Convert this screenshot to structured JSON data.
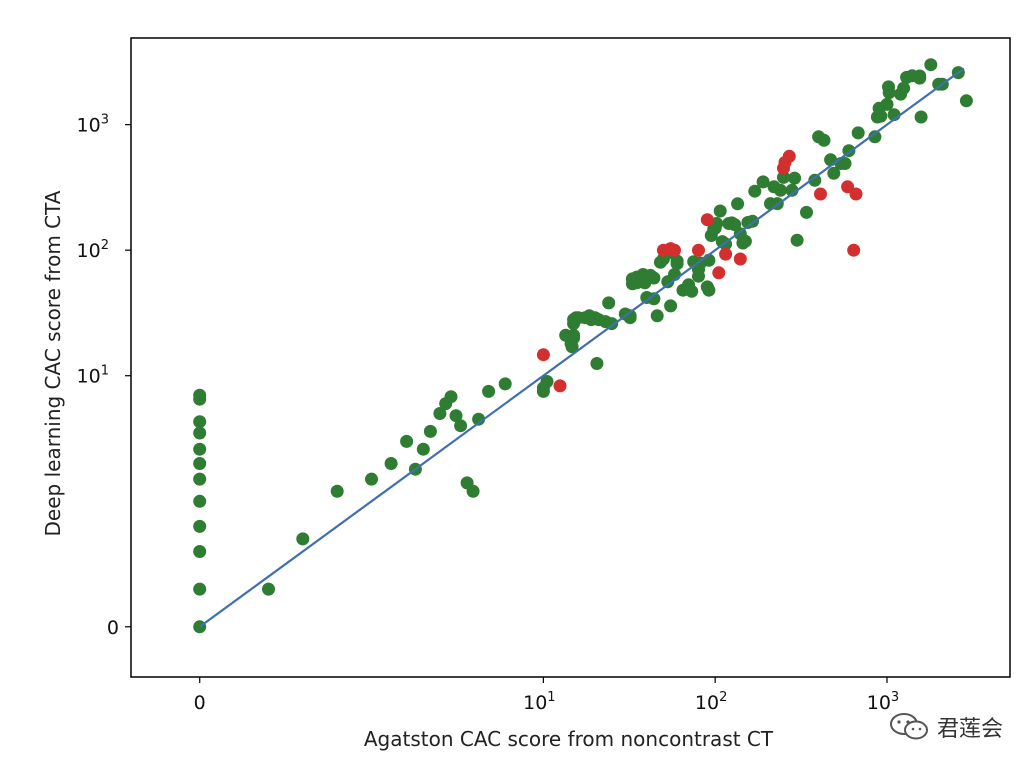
{
  "chart_data": {
    "type": "scatter",
    "title": "",
    "xlabel": "Agatston CAC score from noncontrast CT",
    "ylabel": "Deep learning CAC score from CTA",
    "scale": "symlog",
    "xlim": [
      -0.4,
      5200
    ],
    "ylim": [
      -0.4,
      4900
    ],
    "x_ticks": [
      {
        "value": 0,
        "base": "0",
        "exp": ""
      },
      {
        "value": 10,
        "base": "10",
        "exp": "1"
      },
      {
        "value": 100,
        "base": "10",
        "exp": "2"
      },
      {
        "value": 1000,
        "base": "10",
        "exp": "3"
      }
    ],
    "y_ticks": [
      {
        "value": 0,
        "base": "0",
        "exp": ""
      },
      {
        "value": 10,
        "base": "10",
        "exp": "1"
      },
      {
        "value": 100,
        "base": "10",
        "exp": "2"
      },
      {
        "value": 1000,
        "base": "10",
        "exp": "3"
      }
    ],
    "identity_line": {
      "from": [
        0,
        0
      ],
      "to": [
        2800,
        2800
      ],
      "color": "#3f6fb0"
    },
    "grid": false,
    "legend": "none",
    "series": [
      {
        "color": "#2e7d32",
        "points": [
          [
            0,
            0
          ],
          [
            0,
            0.3
          ],
          [
            0,
            0.6
          ],
          [
            0,
            0.8
          ],
          [
            0,
            1
          ],
          [
            0,
            1.5
          ],
          [
            0,
            2
          ],
          [
            0,
            2.6
          ],
          [
            0,
            3.5
          ],
          [
            0,
            4.3
          ],
          [
            0,
            6.5
          ],
          [
            0,
            7
          ],
          [
            0.4,
            0.3
          ],
          [
            0.6,
            0.7
          ],
          [
            0.8,
            1.2
          ],
          [
            1,
            1.5
          ],
          [
            1.3,
            2
          ],
          [
            1.6,
            3
          ],
          [
            1.8,
            1.8
          ],
          [
            2,
            2.6
          ],
          [
            2.2,
            3.6
          ],
          [
            2.5,
            5
          ],
          [
            2.7,
            6
          ],
          [
            2.9,
            6.8
          ],
          [
            3.1,
            4.8
          ],
          [
            3.3,
            4
          ],
          [
            3.6,
            1.4
          ],
          [
            3.9,
            1.2
          ],
          [
            4.2,
            4.5
          ],
          [
            4.8,
            7.5
          ],
          [
            6,
            8.6
          ],
          [
            10,
            7.5
          ],
          [
            10,
            8
          ],
          [
            10.5,
            9
          ],
          [
            13.5,
            21
          ],
          [
            14.5,
            18
          ],
          [
            14.7,
            17
          ],
          [
            15,
            20
          ],
          [
            15,
            21
          ],
          [
            15,
            26
          ],
          [
            15,
            28
          ],
          [
            15.5,
            29
          ],
          [
            16,
            29
          ],
          [
            17.5,
            29
          ],
          [
            18.5,
            30
          ],
          [
            19,
            28
          ],
          [
            20,
            29
          ],
          [
            21,
            28
          ],
          [
            20.5,
            12.5
          ],
          [
            23,
            27
          ],
          [
            24,
            38
          ],
          [
            25,
            26
          ],
          [
            30,
            31
          ],
          [
            32,
            29
          ],
          [
            32,
            30
          ],
          [
            33,
            59
          ],
          [
            33,
            54
          ],
          [
            35,
            55
          ],
          [
            35,
            61
          ],
          [
            37,
            58
          ],
          [
            38,
            64
          ],
          [
            39,
            55
          ],
          [
            40,
            42
          ],
          [
            42,
            63
          ],
          [
            44,
            60
          ],
          [
            44,
            41
          ],
          [
            46,
            30
          ],
          [
            48,
            80
          ],
          [
            50,
            85
          ],
          [
            52,
            94
          ],
          [
            53,
            56
          ],
          [
            55,
            36
          ],
          [
            57,
            95
          ],
          [
            58,
            64
          ],
          [
            60,
            82
          ],
          [
            60,
            78
          ],
          [
            65,
            48
          ],
          [
            70,
            53
          ],
          [
            73,
            47
          ],
          [
            75,
            81
          ],
          [
            80,
            62
          ],
          [
            80,
            70
          ],
          [
            82,
            79
          ],
          [
            90,
            51
          ],
          [
            92,
            48
          ],
          [
            92,
            83
          ],
          [
            95,
            131
          ],
          [
            98,
            147
          ],
          [
            100,
            150
          ],
          [
            102,
            163
          ],
          [
            107,
            205
          ],
          [
            110,
            117
          ],
          [
            115,
            112
          ],
          [
            120,
            163
          ],
          [
            125,
            165
          ],
          [
            130,
            160
          ],
          [
            135,
            234
          ],
          [
            140,
            135
          ],
          [
            145,
            114
          ],
          [
            150,
            118
          ],
          [
            155,
            166
          ],
          [
            165,
            170
          ],
          [
            170,
            295
          ],
          [
            190,
            350
          ],
          [
            210,
            235
          ],
          [
            220,
            320
          ],
          [
            230,
            235
          ],
          [
            240,
            300
          ],
          [
            250,
            380
          ],
          [
            280,
            300
          ],
          [
            290,
            375
          ],
          [
            300,
            120
          ],
          [
            340,
            200
          ],
          [
            380,
            360
          ],
          [
            400,
            800
          ],
          [
            430,
            750
          ],
          [
            470,
            525
          ],
          [
            490,
            410
          ],
          [
            540,
            490
          ],
          [
            570,
            490
          ],
          [
            600,
            620
          ],
          [
            680,
            860
          ],
          [
            850,
            800
          ],
          [
            880,
            1150
          ],
          [
            900,
            1350
          ],
          [
            920,
            1170
          ],
          [
            1000,
            1450
          ],
          [
            1020,
            2000
          ],
          [
            1030,
            1800
          ],
          [
            1100,
            1200
          ],
          [
            1200,
            1750
          ],
          [
            1250,
            1950
          ],
          [
            1300,
            2380
          ],
          [
            1400,
            2450
          ],
          [
            1550,
            2350
          ],
          [
            1550,
            2440
          ],
          [
            1580,
            1150
          ],
          [
            1800,
            3000
          ],
          [
            2000,
            2100
          ],
          [
            2100,
            2100
          ],
          [
            2600,
            2600
          ],
          [
            2900,
            1550
          ]
        ]
      },
      {
        "color": "#d32f2f",
        "points": [
          [
            10,
            14.7
          ],
          [
            12.5,
            8.3
          ],
          [
            50,
            100
          ],
          [
            55,
            103
          ],
          [
            58,
            100
          ],
          [
            80,
            100
          ],
          [
            90,
            175
          ],
          [
            105,
            66
          ],
          [
            115,
            93
          ],
          [
            140,
            85
          ],
          [
            250,
            450
          ],
          [
            255,
            500
          ],
          [
            270,
            560
          ],
          [
            410,
            280
          ],
          [
            590,
            320
          ],
          [
            640,
            100
          ],
          [
            660,
            280
          ]
        ]
      }
    ]
  },
  "watermark": {
    "text": "君莲会",
    "icon": "wechat-icon"
  }
}
